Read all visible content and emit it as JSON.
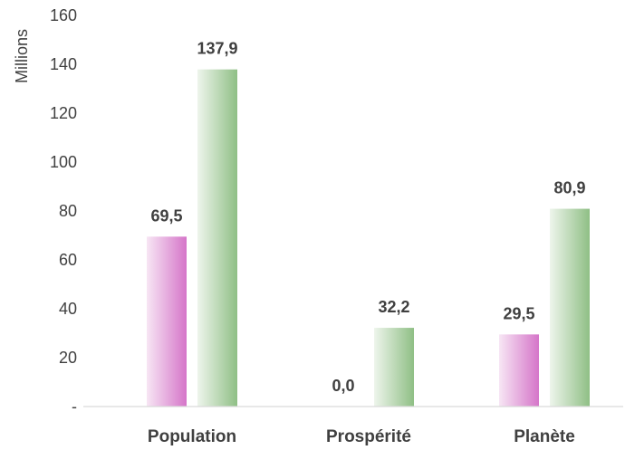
{
  "chart_data": {
    "type": "bar",
    "categories": [
      "Population",
      "Prospérité",
      "Planète"
    ],
    "series": [
      {
        "values": [
          69.5,
          0.0,
          29.5
        ],
        "color": "#d575c9",
        "color_light": "#f7e6f4"
      },
      {
        "values": [
          137.9,
          32.2,
          80.9
        ],
        "color": "#8fbf85",
        "color_light": "#eef5ec"
      }
    ],
    "data_labels": [
      [
        "69,5",
        "0,0",
        "29,5"
      ],
      [
        "137,9",
        "32,2",
        "80,9"
      ]
    ],
    "ylabel": "Millions",
    "ylim": [
      0,
      160
    ],
    "yticks": [
      {
        "value": 0,
        "label": "-"
      },
      {
        "value": 20,
        "label": "20"
      },
      {
        "value": 40,
        "label": "40"
      },
      {
        "value": 60,
        "label": "60"
      },
      {
        "value": 80,
        "label": "80"
      },
      {
        "value": 100,
        "label": "100"
      },
      {
        "value": 120,
        "label": "120"
      },
      {
        "value": 140,
        "label": "140"
      },
      {
        "value": 160,
        "label": "160"
      }
    ],
    "grid": false
  }
}
